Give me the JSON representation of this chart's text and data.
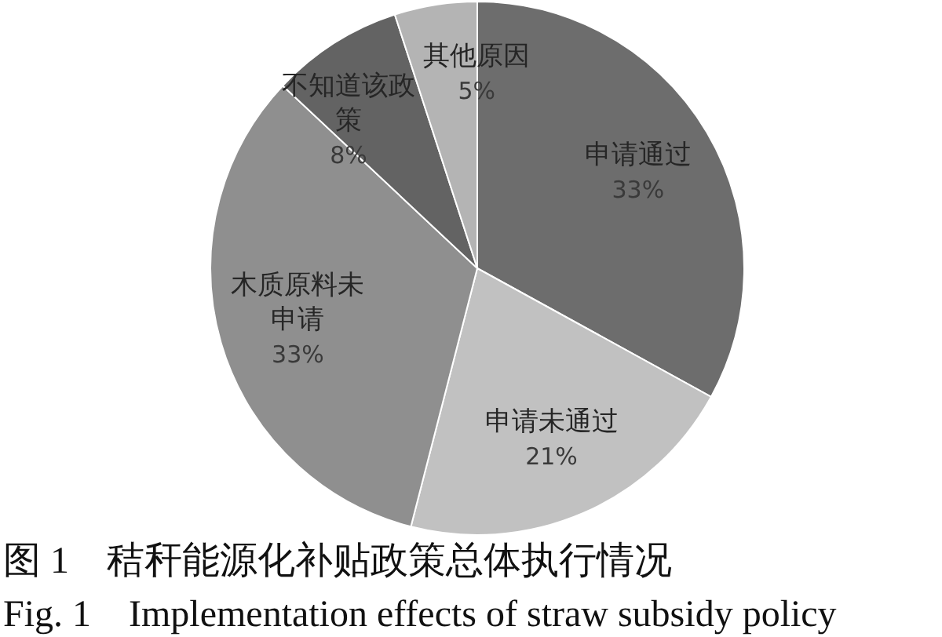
{
  "chart_data": {
    "type": "pie",
    "title": "图 1　秸秆能源化补贴政策总体执行情况",
    "subtitle": "Fig. 1　Implementation effects of straw subsidy policy",
    "categories": [
      "申请通过",
      "申请未通过",
      "木质原料未申请",
      "不知道该政策",
      "其他原因"
    ],
    "values": [
      33,
      21,
      33,
      8,
      5
    ],
    "value_labels": [
      "33%",
      "21%",
      "33%",
      "8%",
      "5%"
    ],
    "colors": [
      "#6d6d6d",
      "#c1c1c1",
      "#8f8f8f",
      "#636363",
      "#b4b4b4"
    ]
  }
}
